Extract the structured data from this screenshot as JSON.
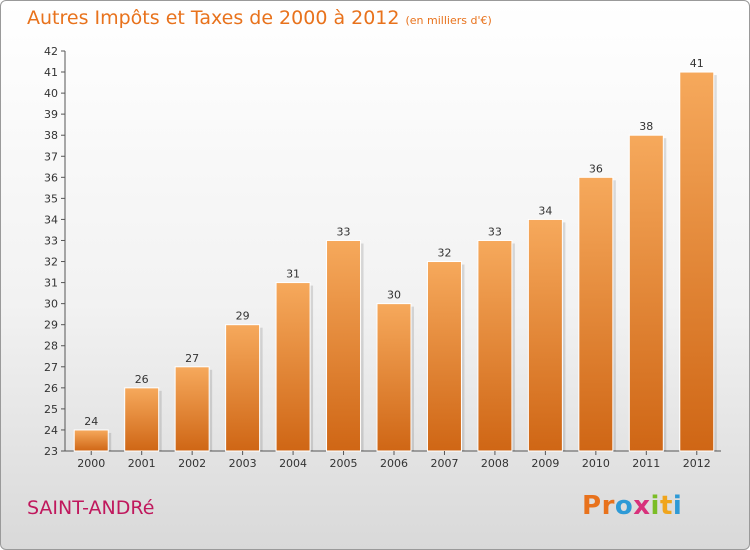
{
  "header": {
    "title": "Autres Impôts et Taxes de 2000 à 2012",
    "unit": "(en milliers d'€)"
  },
  "footer": {
    "town": "SAINT-ANDRé",
    "logo_letters": [
      "P",
      "r",
      "o",
      "x",
      "i",
      "t",
      "i"
    ],
    "logo_colors": [
      "#e8721c",
      "#e8721c",
      "#2e9ad6",
      "#d8317b",
      "#7bbd26",
      "#f0a51c",
      "#2e9ad6"
    ]
  },
  "colors": {
    "bar_top": "#f6a95c",
    "bar_bottom": "#cf6615",
    "title": "#e8721c",
    "town": "#c0185d"
  },
  "chart_data": {
    "type": "bar",
    "title": "Autres Impôts et Taxes de 2000 à 2012",
    "subtitle": "(en milliers d'€)",
    "categories": [
      "2000",
      "2001",
      "2002",
      "2003",
      "2004",
      "2005",
      "2006",
      "2007",
      "2008",
      "2009",
      "2010",
      "2011",
      "2012"
    ],
    "values": [
      24,
      26,
      27,
      29,
      31,
      33,
      30,
      32,
      33,
      34,
      36,
      38,
      41
    ],
    "data_labels": [
      "24",
      "26",
      "27",
      "29",
      "31",
      "33",
      "30",
      "32",
      "33",
      "34",
      "36",
      "38",
      "41"
    ],
    "yticks": [
      "23",
      "24",
      "25",
      "26",
      "27",
      "28",
      "29",
      "30",
      "31",
      "32",
      "33",
      "34",
      "35",
      "36",
      "37",
      "38",
      "39",
      "40",
      "41",
      "42"
    ],
    "ylim": [
      23,
      42
    ],
    "grid": false,
    "legend": "none"
  }
}
